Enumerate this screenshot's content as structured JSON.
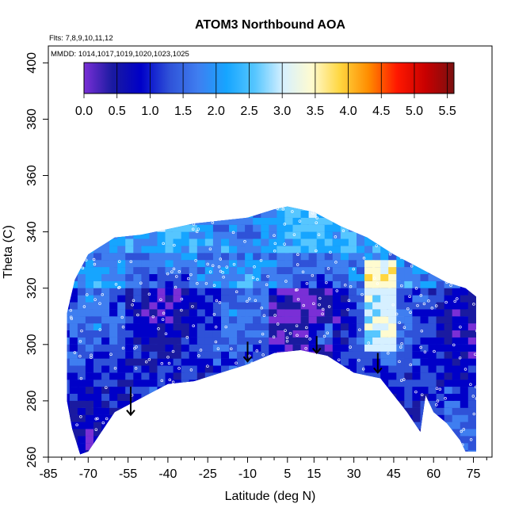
{
  "chart_data": {
    "type": "heatmap",
    "title": "ATOM3 Northbound AOA",
    "flights_note": "Flts: 7,8,9,10,11,12",
    "dates_note": "MMDD: 1014,1017,1019,1020,1023,1025",
    "xlabel": "Latitude (deg N)",
    "ylabel": "Theta (C)",
    "xlim": [
      -85,
      82
    ],
    "ylim": [
      260,
      406
    ],
    "x_ticks": [
      "-85",
      "-70",
      "-55",
      "-40",
      "-25",
      "-10",
      "5",
      "15",
      "30",
      "45",
      "60",
      "75"
    ],
    "x_tick_values": [
      -85,
      -70,
      -55,
      -40,
      -25,
      -10,
      5,
      15,
      30,
      45,
      60,
      75
    ],
    "x_minor_ticks": [
      -80,
      -75,
      -65,
      -60,
      -50,
      -45,
      -35,
      -30,
      -20,
      -15,
      -5,
      0,
      10,
      20,
      25,
      35,
      40,
      50,
      55,
      65,
      70,
      80
    ],
    "y_ticks": [
      "260",
      "280",
      "300",
      "320",
      "340",
      "360",
      "380",
      "400"
    ],
    "y_tick_values": [
      260,
      280,
      300,
      320,
      340,
      360,
      380,
      400
    ],
    "colorbar": {
      "ticks": [
        "0.0",
        "0.5",
        "1.0",
        "1.5",
        "2.0",
        "2.5",
        "3.0",
        "3.5",
        "4.0",
        "4.5",
        "5.0",
        "5.5"
      ],
      "tick_values": [
        0,
        0.5,
        1,
        1.5,
        2,
        2.5,
        3,
        3.5,
        4,
        4.5,
        5,
        5.5
      ],
      "range": [
        0,
        5.6
      ],
      "colors": [
        "#7a2fd6",
        "#1a1aa0",
        "#0000c8",
        "#2f52d8",
        "#3f7ef0",
        "#16a5ff",
        "#56c6ff",
        "#d6f0ff",
        "#fffbd0",
        "#ffd640",
        "#ff8c00",
        "#ff1800",
        "#c80000",
        "#7a1010"
      ]
    },
    "region_upper_boundary": [
      [
        -78,
        311
      ],
      [
        -75,
        323
      ],
      [
        -70,
        332
      ],
      [
        -60,
        338
      ],
      [
        -50,
        339
      ],
      [
        -40,
        341
      ],
      [
        -30,
        343
      ],
      [
        -20,
        344
      ],
      [
        -10,
        345
      ],
      [
        0,
        348
      ],
      [
        5,
        349
      ],
      [
        15,
        347
      ],
      [
        25,
        342
      ],
      [
        35,
        338
      ],
      [
        45,
        332
      ],
      [
        55,
        327
      ],
      [
        65,
        322
      ],
      [
        72,
        320
      ],
      [
        76,
        317
      ]
    ],
    "region_lower_boundary": [
      [
        -78,
        280
      ],
      [
        -76,
        270
      ],
      [
        -73,
        261
      ],
      [
        -70,
        262
      ],
      [
        -60,
        276
      ],
      [
        -50,
        281
      ],
      [
        -40,
        286
      ],
      [
        -30,
        287
      ],
      [
        -20,
        290
      ],
      [
        -10,
        293
      ],
      [
        0,
        297
      ],
      [
        10,
        298
      ],
      [
        20,
        296
      ],
      [
        30,
        290
      ],
      [
        40,
        288
      ],
      [
        50,
        276
      ],
      [
        55,
        269
      ],
      [
        57,
        282
      ],
      [
        60,
        276
      ],
      [
        65,
        272
      ],
      [
        70,
        266
      ],
      [
        72,
        262
      ],
      [
        76,
        262
      ]
    ],
    "arrows": [
      {
        "lat": -54,
        "theta_top": 285,
        "theta_bottom": 275
      },
      {
        "lat": -10,
        "theta_top": 301,
        "theta_bottom": 294
      },
      {
        "lat": 16,
        "theta_top": 303,
        "theta_bottom": 297
      },
      {
        "lat": 39,
        "theta_top": 297,
        "theta_bottom": 290
      }
    ]
  }
}
